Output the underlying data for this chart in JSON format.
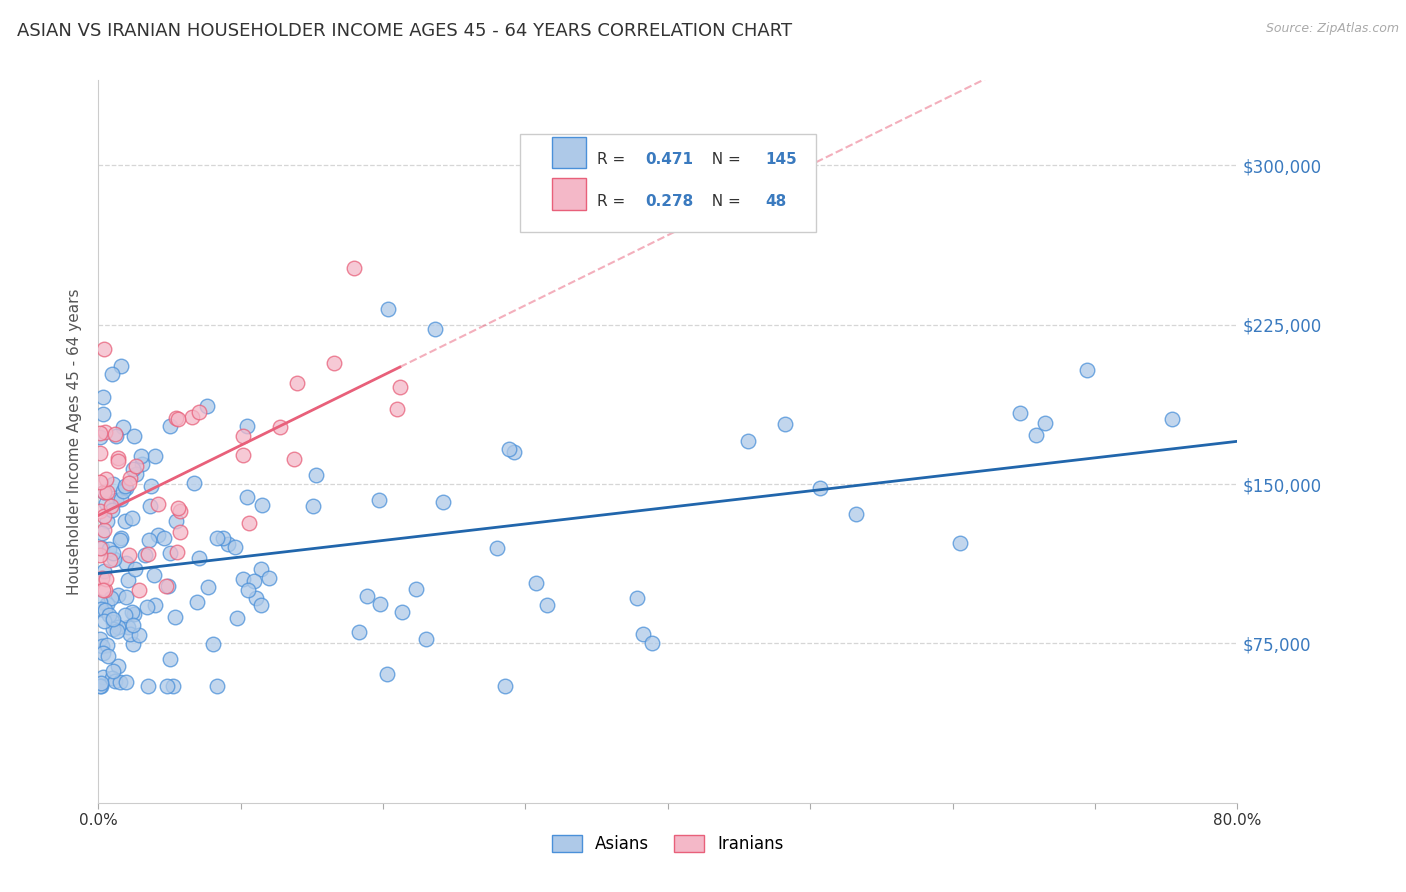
{
  "title": "ASIAN VS IRANIAN HOUSEHOLDER INCOME AGES 45 - 64 YEARS CORRELATION CHART",
  "source": "Source: ZipAtlas.com",
  "ylabel": "Householder Income Ages 45 - 64 years",
  "xlim": [
    0.0,
    0.8
  ],
  "ylim": [
    0,
    340000
  ],
  "yticks": [
    75000,
    150000,
    225000,
    300000
  ],
  "ytick_labels": [
    "$75,000",
    "$150,000",
    "$225,000",
    "$300,000"
  ],
  "asian_R": 0.471,
  "asian_N": 145,
  "iranian_R": 0.278,
  "iranian_N": 48,
  "asian_color": "#aec9e8",
  "iranian_color": "#f4b8c8",
  "asian_edge_color": "#4a90d9",
  "iranian_edge_color": "#e8607a",
  "asian_line_color": "#2166ac",
  "iranian_line_color": "#e8607a",
  "background_color": "#ffffff",
  "grid_color": "#cccccc",
  "legend_label_asian": "Asians",
  "legend_label_iranian": "Iranians",
  "ytick_color": "#3a7abf"
}
